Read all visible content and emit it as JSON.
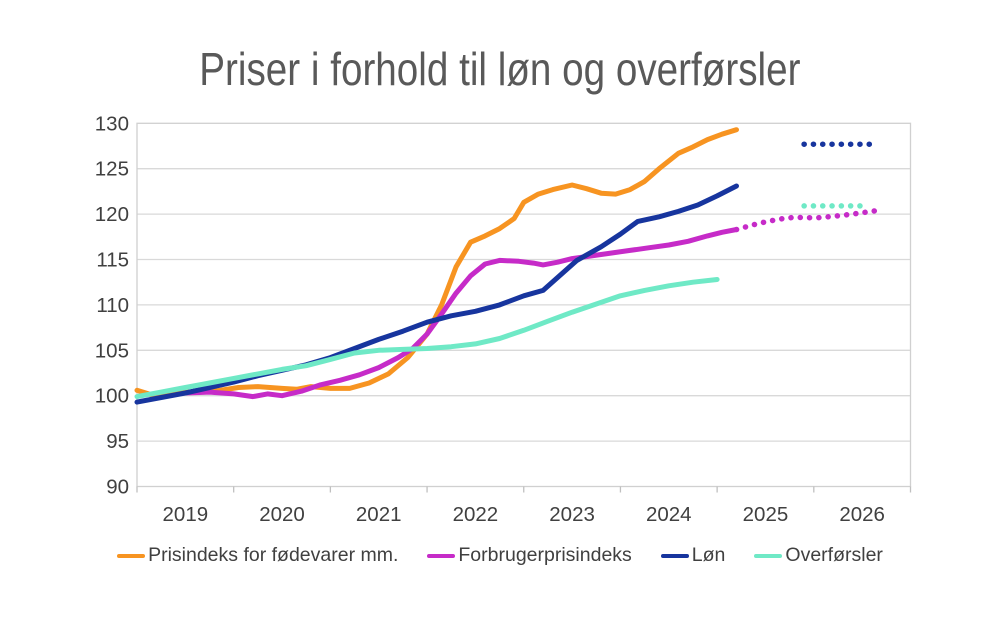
{
  "chart_data": {
    "type": "line",
    "title": "Priser i forhold til løn og overførsler",
    "x_tick_labels": [
      "2019",
      "2020",
      "2021",
      "2022",
      "2023",
      "2024",
      "2025",
      "2026"
    ],
    "x_start_year": 2019,
    "ylim": [
      90,
      130
    ],
    "y_tick_step": 5,
    "grid": "horizontal",
    "legend_position": "bottom",
    "axis_text_color": "#404040",
    "grid_color": "#d9d9d9",
    "series": [
      {
        "name": "Prisindeks for fødevarer mm.",
        "color": "#F79421",
        "solid": [
          [
            2019.0,
            100.6
          ],
          [
            2019.15,
            100.1
          ],
          [
            2019.3,
            100.3
          ],
          [
            2019.55,
            100.4
          ],
          [
            2019.8,
            100.5
          ],
          [
            2020.05,
            100.9
          ],
          [
            2020.25,
            101.0
          ],
          [
            2020.5,
            100.8
          ],
          [
            2020.65,
            100.7
          ],
          [
            2020.8,
            101.0
          ],
          [
            2021.0,
            100.8
          ],
          [
            2021.2,
            100.8
          ],
          [
            2021.4,
            101.4
          ],
          [
            2021.6,
            102.4
          ],
          [
            2021.8,
            104.2
          ],
          [
            2022.0,
            106.8
          ],
          [
            2022.15,
            110.0
          ],
          [
            2022.3,
            114.2
          ],
          [
            2022.45,
            116.9
          ],
          [
            2022.6,
            117.6
          ],
          [
            2022.75,
            118.4
          ],
          [
            2022.9,
            119.5
          ],
          [
            2023.0,
            121.3
          ],
          [
            2023.15,
            122.2
          ],
          [
            2023.3,
            122.7
          ],
          [
            2023.5,
            123.2
          ],
          [
            2023.65,
            122.8
          ],
          [
            2023.8,
            122.3
          ],
          [
            2023.95,
            122.2
          ],
          [
            2024.1,
            122.7
          ],
          [
            2024.25,
            123.6
          ],
          [
            2024.4,
            125.0
          ],
          [
            2024.6,
            126.7
          ],
          [
            2024.75,
            127.4
          ],
          [
            2024.9,
            128.2
          ],
          [
            2025.05,
            128.8
          ],
          [
            2025.2,
            129.3
          ]
        ],
        "dotted": []
      },
      {
        "name": "Forbrugerprisindeks",
        "color": "#C62BC8",
        "solid": [
          [
            2019.5,
            100.3
          ],
          [
            2019.75,
            100.4
          ],
          [
            2020.0,
            100.2
          ],
          [
            2020.2,
            99.9
          ],
          [
            2020.35,
            100.2
          ],
          [
            2020.5,
            100.0
          ],
          [
            2020.7,
            100.5
          ],
          [
            2020.9,
            101.2
          ],
          [
            2021.1,
            101.7
          ],
          [
            2021.3,
            102.3
          ],
          [
            2021.5,
            103.1
          ],
          [
            2021.7,
            104.2
          ],
          [
            2021.85,
            105.2
          ],
          [
            2022.0,
            106.8
          ],
          [
            2022.15,
            109.0
          ],
          [
            2022.3,
            111.3
          ],
          [
            2022.45,
            113.2
          ],
          [
            2022.6,
            114.5
          ],
          [
            2022.75,
            114.9
          ],
          [
            2022.95,
            114.8
          ],
          [
            2023.1,
            114.6
          ],
          [
            2023.2,
            114.4
          ],
          [
            2023.35,
            114.7
          ],
          [
            2023.5,
            115.1
          ],
          [
            2023.7,
            115.4
          ],
          [
            2023.9,
            115.7
          ],
          [
            2024.1,
            116.0
          ],
          [
            2024.3,
            116.3
          ],
          [
            2024.5,
            116.6
          ],
          [
            2024.7,
            117.0
          ],
          [
            2024.9,
            117.6
          ],
          [
            2025.05,
            118.0
          ],
          [
            2025.2,
            118.3
          ]
        ],
        "dotted": [
          [
            2025.2,
            118.3
          ],
          [
            2025.3,
            118.6
          ],
          [
            2025.42,
            118.95
          ],
          [
            2025.55,
            119.25
          ],
          [
            2025.68,
            119.5
          ],
          [
            2025.8,
            119.65
          ],
          [
            2025.92,
            119.6
          ],
          [
            2026.05,
            119.6
          ],
          [
            2026.15,
            119.7
          ],
          [
            2026.28,
            119.85
          ],
          [
            2026.4,
            120.0
          ],
          [
            2026.5,
            120.15
          ],
          [
            2026.6,
            120.3
          ],
          [
            2026.68,
            120.45
          ]
        ]
      },
      {
        "name": "Løn",
        "color": "#17359E",
        "solid": [
          [
            2019.0,
            99.3
          ],
          [
            2019.25,
            99.8
          ],
          [
            2019.5,
            100.3
          ],
          [
            2019.75,
            100.9
          ],
          [
            2020.0,
            101.5
          ],
          [
            2020.25,
            102.2
          ],
          [
            2020.5,
            102.8
          ],
          [
            2020.75,
            103.4
          ],
          [
            2021.0,
            104.2
          ],
          [
            2021.25,
            105.2
          ],
          [
            2021.5,
            106.2
          ],
          [
            2021.75,
            107.1
          ],
          [
            2022.0,
            108.1
          ],
          [
            2022.25,
            108.8
          ],
          [
            2022.5,
            109.3
          ],
          [
            2022.75,
            110.0
          ],
          [
            2023.0,
            111.0
          ],
          [
            2023.2,
            111.6
          ],
          [
            2023.55,
            114.9
          ],
          [
            2023.8,
            116.4
          ],
          [
            2024.0,
            117.8
          ],
          [
            2024.18,
            119.2
          ],
          [
            2024.4,
            119.7
          ],
          [
            2024.6,
            120.3
          ],
          [
            2024.8,
            121.0
          ],
          [
            2025.0,
            122.0
          ],
          [
            2025.2,
            123.1
          ]
        ],
        "dotted": [
          [
            2025.9,
            127.7
          ],
          [
            2026.65,
            127.7
          ]
        ]
      },
      {
        "name": "Overførsler",
        "color": "#6FE9C6",
        "solid": [
          [
            2019.0,
            99.9
          ],
          [
            2019.25,
            100.4
          ],
          [
            2019.5,
            100.9
          ],
          [
            2019.75,
            101.4
          ],
          [
            2020.0,
            101.9
          ],
          [
            2020.25,
            102.4
          ],
          [
            2020.5,
            102.9
          ],
          [
            2020.75,
            103.3
          ],
          [
            2021.0,
            104.0
          ],
          [
            2021.25,
            104.7
          ],
          [
            2021.5,
            105.0
          ],
          [
            2021.75,
            105.1
          ],
          [
            2022.0,
            105.2
          ],
          [
            2022.25,
            105.4
          ],
          [
            2022.5,
            105.7
          ],
          [
            2022.75,
            106.3
          ],
          [
            2023.0,
            107.2
          ],
          [
            2023.25,
            108.2
          ],
          [
            2023.5,
            109.2
          ],
          [
            2023.75,
            110.1
          ],
          [
            2024.0,
            111.0
          ],
          [
            2024.25,
            111.6
          ],
          [
            2024.5,
            112.1
          ],
          [
            2024.75,
            112.5
          ],
          [
            2025.0,
            112.8
          ]
        ],
        "dotted": [
          [
            2025.9,
            120.9
          ],
          [
            2026.55,
            120.9
          ]
        ]
      }
    ]
  }
}
